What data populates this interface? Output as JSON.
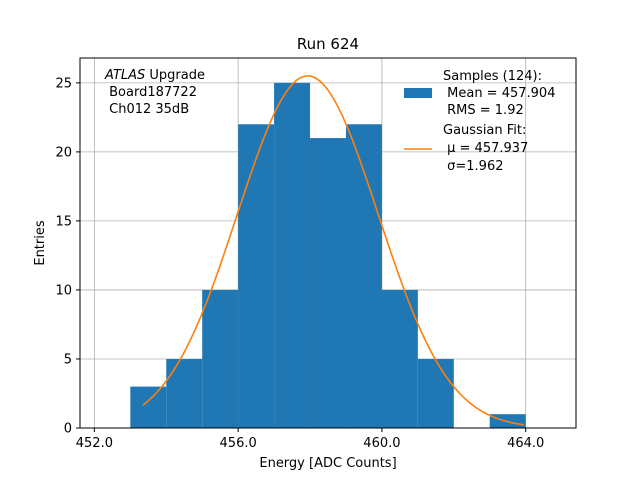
{
  "chart_data": {
    "type": "bar",
    "title": "Run 624",
    "xlabel": "Energy [ADC Counts]",
    "ylabel": "Entries",
    "xlim": [
      451.6,
      465.4
    ],
    "ylim": [
      0,
      26.8
    ],
    "xticks": [
      452.0,
      456.0,
      460.0,
      464.0
    ],
    "xtick_labels": [
      "452.0",
      "456.0",
      "460.0",
      "464.0"
    ],
    "yticks": [
      0,
      5,
      10,
      15,
      20,
      25
    ],
    "ytick_labels": [
      "0",
      "5",
      "10",
      "15",
      "20",
      "25"
    ],
    "grid": true,
    "legend_position": "top-right",
    "histogram": {
      "name": "Samples (124):",
      "color": "#1f77b4",
      "bin_edges": [
        453,
        454,
        455,
        456,
        457,
        458,
        459,
        460,
        461,
        462,
        463,
        464
      ],
      "counts": [
        3,
        5,
        10,
        22,
        25,
        21,
        22,
        10,
        5,
        0,
        1
      ]
    },
    "fit": {
      "name": "Gaussian Fit:",
      "color": "#ff7f0e",
      "mu": 457.937,
      "sigma": 1.962,
      "amplitude": 25.5,
      "x_range": [
        453.35,
        463.95
      ]
    },
    "legend": {
      "samples_title": "Samples (124):",
      "samples_mean": " Mean = 457.904",
      "samples_rms": " RMS = 1.92",
      "fit_title": "Gaussian Fit:",
      "fit_mu": " μ = 457.937",
      "fit_sigma": " σ=1.962"
    },
    "annotation": {
      "atlas": "ATLAS",
      "upgrade": " Upgrade",
      "board": " Board187722",
      "channel": " Ch012 35dB"
    }
  }
}
